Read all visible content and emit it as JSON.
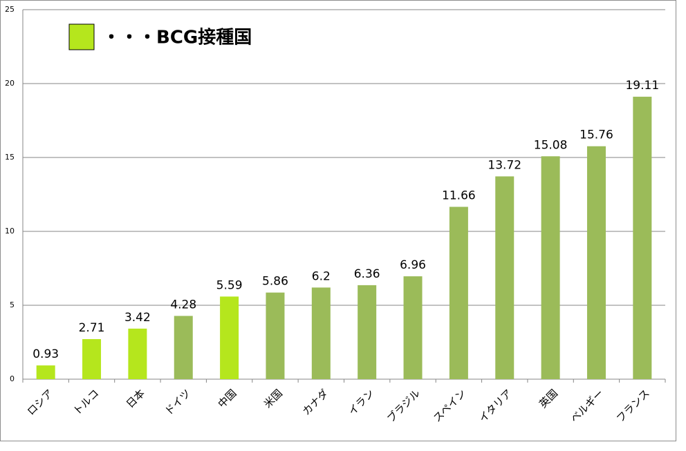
{
  "chart_data": {
    "type": "bar",
    "categories": [
      "ロシア",
      "トルコ",
      "日本",
      "ドイツ",
      "中国",
      "米国",
      "カナダ",
      "イラン",
      "ブラジル",
      "スペイン",
      "イタリア",
      "英国",
      "ベルギー",
      "フランス"
    ],
    "values": [
      0.93,
      2.71,
      3.42,
      4.28,
      5.59,
      5.86,
      6.2,
      6.36,
      6.96,
      11.66,
      13.72,
      15.08,
      15.76,
      19.11
    ],
    "colors": [
      "#b5e61d",
      "#b5e61d",
      "#b5e61d",
      "#9bbb59",
      "#b5e61d",
      "#9bbb59",
      "#9bbb59",
      "#9bbb59",
      "#9bbb59",
      "#9bbb59",
      "#9bbb59",
      "#9bbb59",
      "#9bbb59",
      "#9bbb59"
    ],
    "legend": {
      "label": "・・・BCG接種国",
      "color": "#b5e61d"
    },
    "ylim": [
      0,
      25
    ],
    "yticks": [
      0,
      5,
      10,
      15,
      20,
      25
    ],
    "grid": true
  }
}
